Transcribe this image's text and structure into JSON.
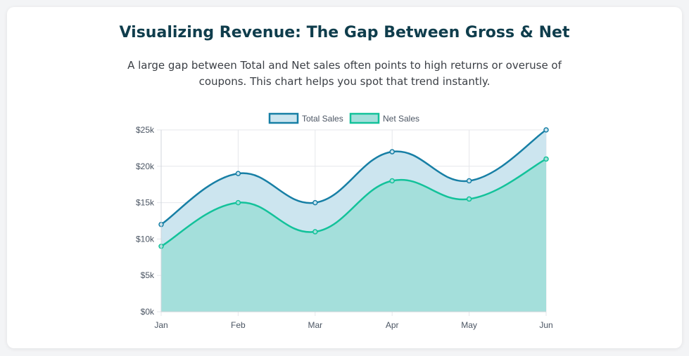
{
  "header": {
    "title": "Visualizing Revenue: The Gap Between Gross & Net",
    "subtitle": "A large gap between Total and Net sales often points to high returns or overuse of coupons. This chart helps you spot that trend instantly."
  },
  "colors": {
    "total_line": "#177fa5",
    "total_fill": "#cce5ef",
    "net_line": "#13c29a",
    "net_fill": "#a4dfdb",
    "grid": "#e5e7eb",
    "tick_text": "#4b5563"
  },
  "chart_data": {
    "type": "area",
    "categories": [
      "Jan",
      "Feb",
      "Mar",
      "Apr",
      "May",
      "Jun"
    ],
    "series": [
      {
        "name": "Total Sales",
        "values": [
          12000,
          19000,
          15000,
          22000,
          18000,
          25000
        ]
      },
      {
        "name": "Net Sales",
        "values": [
          9000,
          15000,
          11000,
          18000,
          15500,
          21000
        ]
      }
    ],
    "y_ticks": [
      "$0k",
      "$5k",
      "$10k",
      "$15k",
      "$20k",
      "$25k"
    ],
    "ylim": [
      0,
      25000
    ],
    "grid": true,
    "legend": "top-center",
    "xlabel": "",
    "ylabel": ""
  }
}
